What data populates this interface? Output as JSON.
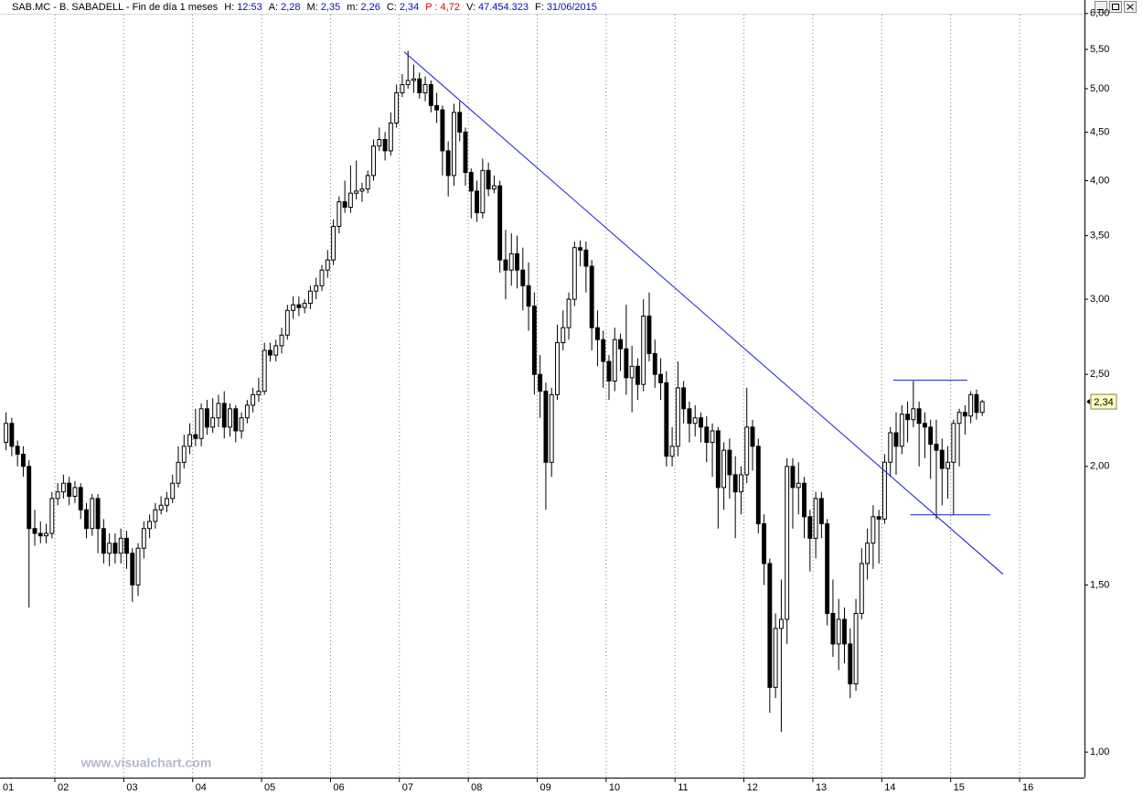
{
  "chart_data": {
    "type": "candlestick",
    "title": "SAB.MC - B. SABADELL - Fin de día 1 meses",
    "quote": [
      {
        "label": "H:",
        "value": "12:53"
      },
      {
        "label": "A:",
        "value": "2,28"
      },
      {
        "label": "M:",
        "value": "2,35"
      },
      {
        "label": "m:",
        "value": "2,26"
      },
      {
        "label": "C:",
        "value": "2,34"
      },
      {
        "label": "P :",
        "value": "4,72",
        "color": "#e00000"
      },
      {
        "label": "V:",
        "value": "47.454.323"
      },
      {
        "label": "F:",
        "value": "31/06/2015"
      }
    ],
    "watermark": "www.visualchart.com",
    "log": true,
    "xgrid": true,
    "up_color": "#ffffff",
    "down_color": "#000000",
    "xlim": [
      13.95,
      202.8
    ],
    "xticks": [
      {
        "value": 11.5,
        "label": "01"
      },
      {
        "value": 23.5,
        "label": "02"
      },
      {
        "value": 35.5,
        "label": "03"
      },
      {
        "value": 47.5,
        "label": "04"
      },
      {
        "value": 59.5,
        "label": "05"
      },
      {
        "value": 71.5,
        "label": "06"
      },
      {
        "value": 83.5,
        "label": "07"
      },
      {
        "value": 95.5,
        "label": "08"
      },
      {
        "value": 107.5,
        "label": "09"
      },
      {
        "value": 119.5,
        "label": "10"
      },
      {
        "value": 131.5,
        "label": "11"
      },
      {
        "value": 143.5,
        "label": "12"
      },
      {
        "value": 155.5,
        "label": "13"
      },
      {
        "value": 167.5,
        "label": "14"
      },
      {
        "value": 179.5,
        "label": "15"
      },
      {
        "value": 191.5,
        "label": "16"
      }
    ],
    "ylim": [
      0.94,
      6.2
    ],
    "yticks": [
      {
        "value": 1,
        "label": "1,00"
      },
      {
        "value": 1.5,
        "label": "1,50"
      },
      {
        "value": 2,
        "label": "2,00"
      },
      {
        "value": 2.5,
        "label": "2,50"
      },
      {
        "value": 3,
        "label": "3,00"
      },
      {
        "value": 3.5,
        "label": "3,50"
      },
      {
        "value": 4,
        "label": "4,00"
      },
      {
        "value": 4.5,
        "label": "4,50"
      },
      {
        "value": 5,
        "label": "5,00"
      },
      {
        "value": 5.5,
        "label": "5,50"
      },
      {
        "value": 6,
        "label": "6,00"
      }
    ],
    "x": [
      15,
      16,
      17,
      18,
      19,
      20,
      21,
      22,
      23,
      24,
      25,
      26,
      27,
      28,
      29,
      30,
      31,
      32,
      33,
      34,
      35,
      36,
      37,
      38,
      39,
      40,
      41,
      42,
      43,
      44,
      45,
      46,
      47,
      48,
      49,
      50,
      51,
      52,
      53,
      54,
      55,
      56,
      57,
      58,
      59,
      60,
      61,
      62,
      63,
      64,
      65,
      66,
      67,
      68,
      69,
      70,
      71,
      72,
      73,
      74,
      75,
      76,
      77,
      78,
      79,
      80,
      81,
      82,
      83,
      84,
      85,
      86,
      87,
      88,
      89,
      90,
      91,
      92,
      93,
      94,
      95,
      96,
      97,
      98,
      99,
      100,
      101,
      102,
      103,
      104,
      105,
      106,
      107,
      108,
      109,
      110,
      111,
      112,
      113,
      114,
      115,
      116,
      117,
      118,
      119,
      120,
      121,
      122,
      123,
      124,
      125,
      126,
      127,
      128,
      129,
      130,
      131,
      132,
      133,
      134,
      135,
      136,
      137,
      138,
      139,
      140,
      141,
      142,
      143,
      144,
      145,
      146,
      147,
      148,
      149,
      150,
      151,
      152,
      153,
      154,
      155,
      156,
      157,
      158,
      159,
      160,
      161,
      162,
      163,
      164,
      165,
      166,
      167,
      168,
      169,
      170,
      171,
      172,
      173,
      174,
      175,
      176,
      177,
      178,
      179,
      180,
      181,
      182,
      183,
      184,
      185
    ],
    "open": [
      2.12,
      2.22,
      2.1,
      2.06,
      2.0,
      1.72,
      1.7,
      1.69,
      1.7,
      1.85,
      1.88,
      1.92,
      1.86,
      1.9,
      1.8,
      1.72,
      1.85,
      1.72,
      1.62,
      1.66,
      1.62,
      1.68,
      1.62,
      1.5,
      1.64,
      1.72,
      1.75,
      1.8,
      1.82,
      1.85,
      1.92,
      2.02,
      2.1,
      2.16,
      2.14,
      2.3,
      2.2,
      2.25,
      2.33,
      2.2,
      2.3,
      2.18,
      2.25,
      2.32,
      2.38,
      2.4,
      2.65,
      2.62,
      2.68,
      2.75,
      2.92,
      2.96,
      2.94,
      2.97,
      3.06,
      3.1,
      3.22,
      3.3,
      3.58,
      3.8,
      3.75,
      3.88,
      3.9,
      3.92,
      4.05,
      4.35,
      4.42,
      4.3,
      4.6,
      4.95,
      5.05,
      5.1,
      5.12,
      4.95,
      5.05,
      4.8,
      4.75,
      4.3,
      4.05,
      4.72,
      4.5,
      4.08,
      3.9,
      3.7,
      4.1,
      3.92,
      3.95,
      3.3,
      3.22,
      3.35,
      3.22,
      3.1,
      2.95,
      2.5,
      2.4,
      2.02,
      2.38,
      2.7,
      2.8,
      3.0,
      3.4,
      3.38,
      3.25,
      2.8,
      2.72,
      2.58,
      2.46,
      2.72,
      2.66,
      2.48,
      2.55,
      2.44,
      2.88,
      2.63,
      2.5,
      2.45,
      2.05,
      2.1,
      2.42,
      2.3,
      2.22,
      2.25,
      2.2,
      2.12,
      2.18,
      1.9,
      2.08,
      1.96,
      1.88,
      1.96,
      2.2,
      2.1,
      1.74,
      1.58,
      1.17,
      1.35,
      1.38,
      2.0,
      1.9,
      1.92,
      1.77,
      1.68,
      1.85,
      1.74,
      1.4,
      1.3,
      1.38,
      1.3,
      1.18,
      1.4,
      1.58,
      1.66,
      1.77,
      1.76,
      2.02,
      2.17,
      2.1,
      2.27,
      2.24,
      2.3,
      2.22,
      2.2,
      2.11,
      2.08,
      1.99,
      2.02,
      2.22,
      2.28,
      2.26,
      2.38,
      2.28
    ],
    "high": [
      2.28,
      2.25,
      2.13,
      2.1,
      2.03,
      1.8,
      1.75,
      1.74,
      1.88,
      1.92,
      1.96,
      1.95,
      1.93,
      1.92,
      1.83,
      1.87,
      1.87,
      1.76,
      1.7,
      1.7,
      1.72,
      1.71,
      1.64,
      1.66,
      1.75,
      1.78,
      1.83,
      1.86,
      1.88,
      1.96,
      2.1,
      2.16,
      2.22,
      2.3,
      2.33,
      2.35,
      2.36,
      2.38,
      2.4,
      2.33,
      2.32,
      2.28,
      2.35,
      2.42,
      2.48,
      2.7,
      2.7,
      2.72,
      2.8,
      2.96,
      3.02,
      3.02,
      3.0,
      3.1,
      3.16,
      3.26,
      3.38,
      3.64,
      3.85,
      4.0,
      4.15,
      4.2,
      3.98,
      4.1,
      4.42,
      4.55,
      4.5,
      4.72,
      5.05,
      5.18,
      5.48,
      5.3,
      5.2,
      5.15,
      5.1,
      4.95,
      4.8,
      4.4,
      4.82,
      4.85,
      4.55,
      4.12,
      4.0,
      4.22,
      4.18,
      4.05,
      4.0,
      3.55,
      3.52,
      3.5,
      3.4,
      3.28,
      3.05,
      2.62,
      2.45,
      2.42,
      2.82,
      2.92,
      3.05,
      3.45,
      3.46,
      3.45,
      3.3,
      2.92,
      2.78,
      2.62,
      2.8,
      2.76,
      2.96,
      2.68,
      2.6,
      3.0,
      3.05,
      2.72,
      2.6,
      2.52,
      2.2,
      2.58,
      2.46,
      2.34,
      2.32,
      2.28,
      2.26,
      2.22,
      2.2,
      2.12,
      2.14,
      2.05,
      2.0,
      2.42,
      2.24,
      2.14,
      1.78,
      1.6,
      1.4,
      1.52,
      2.04,
      2.04,
      2.02,
      1.95,
      1.8,
      1.88,
      1.88,
      1.76,
      1.52,
      1.45,
      1.42,
      1.35,
      1.45,
      1.64,
      1.72,
      1.82,
      1.8,
      2.06,
      2.2,
      2.28,
      2.32,
      2.34,
      2.46,
      2.34,
      2.28,
      2.24,
      2.24,
      2.14,
      2.1,
      2.24,
      2.3,
      2.32,
      2.4,
      2.41,
      2.35
    ],
    "low": [
      2.08,
      2.05,
      2.0,
      1.95,
      1.42,
      1.65,
      1.66,
      1.66,
      1.68,
      1.82,
      1.85,
      1.82,
      1.83,
      1.76,
      1.68,
      1.69,
      1.62,
      1.58,
      1.57,
      1.58,
      1.58,
      1.56,
      1.44,
      1.46,
      1.6,
      1.68,
      1.72,
      1.78,
      1.79,
      1.83,
      1.9,
      1.99,
      2.06,
      2.1,
      2.1,
      2.16,
      2.17,
      2.2,
      2.14,
      2.15,
      2.12,
      2.14,
      2.22,
      2.28,
      2.34,
      2.38,
      2.58,
      2.58,
      2.63,
      2.72,
      2.86,
      2.88,
      2.9,
      2.93,
      3.0,
      3.06,
      3.16,
      3.26,
      3.52,
      3.7,
      3.7,
      3.82,
      3.8,
      3.88,
      4.0,
      4.3,
      4.2,
      4.25,
      4.55,
      4.9,
      5.0,
      4.95,
      4.88,
      4.85,
      4.72,
      4.6,
      4.05,
      3.85,
      3.95,
      4.4,
      3.95,
      3.65,
      3.62,
      3.65,
      3.85,
      3.88,
      3.2,
      3.0,
      3.1,
      3.08,
      2.92,
      2.78,
      2.38,
      2.25,
      1.8,
      1.95,
      2.35,
      2.65,
      2.72,
      2.95,
      3.25,
      3.05,
      2.65,
      2.55,
      2.42,
      2.35,
      2.4,
      2.52,
      2.38,
      2.28,
      2.35,
      2.4,
      2.58,
      2.42,
      2.35,
      2.0,
      2.0,
      2.05,
      2.22,
      2.12,
      2.15,
      2.12,
      2.02,
      1.95,
      1.72,
      1.8,
      1.85,
      1.68,
      1.78,
      1.92,
      1.98,
      1.7,
      1.5,
      1.1,
      1.14,
      1.05,
      1.3,
      1.72,
      1.78,
      1.68,
      1.55,
      1.6,
      1.68,
      1.36,
      1.26,
      1.22,
      1.24,
      1.14,
      1.16,
      1.38,
      1.52,
      1.56,
      1.58,
      1.74,
      1.95,
      1.96,
      2.06,
      2.12,
      2.2,
      2.0,
      2.04,
      1.94,
      1.76,
      1.82,
      1.85,
      1.78,
      2.0,
      2.16,
      2.22,
      2.24,
      2.26
    ],
    "close": [
      2.22,
      2.1,
      2.06,
      2.0,
      1.72,
      1.7,
      1.69,
      1.7,
      1.85,
      1.88,
      1.92,
      1.86,
      1.9,
      1.8,
      1.72,
      1.85,
      1.72,
      1.62,
      1.66,
      1.62,
      1.68,
      1.62,
      1.5,
      1.64,
      1.72,
      1.75,
      1.8,
      1.82,
      1.85,
      1.92,
      2.02,
      2.1,
      2.16,
      2.14,
      2.3,
      2.2,
      2.25,
      2.33,
      2.2,
      2.3,
      2.18,
      2.25,
      2.32,
      2.38,
      2.4,
      2.65,
      2.62,
      2.68,
      2.75,
      2.92,
      2.96,
      2.94,
      2.97,
      3.06,
      3.1,
      3.22,
      3.3,
      3.58,
      3.8,
      3.75,
      3.88,
      3.9,
      3.92,
      4.05,
      4.35,
      4.42,
      4.3,
      4.6,
      4.95,
      5.05,
      5.1,
      5.12,
      4.95,
      5.05,
      4.8,
      4.75,
      4.3,
      4.05,
      4.72,
      4.5,
      4.08,
      3.9,
      3.7,
      4.1,
      3.92,
      3.95,
      3.3,
      3.22,
      3.35,
      3.22,
      3.1,
      2.95,
      2.5,
      2.4,
      2.02,
      2.38,
      2.7,
      2.8,
      3.0,
      3.4,
      3.38,
      3.25,
      2.8,
      2.72,
      2.58,
      2.46,
      2.72,
      2.66,
      2.48,
      2.55,
      2.44,
      2.88,
      2.63,
      2.5,
      2.45,
      2.05,
      2.1,
      2.42,
      2.3,
      2.22,
      2.25,
      2.2,
      2.12,
      2.18,
      1.9,
      2.08,
      1.96,
      1.88,
      1.96,
      2.2,
      2.1,
      1.74,
      1.58,
      1.17,
      1.35,
      1.38,
      2.0,
      1.9,
      1.92,
      1.77,
      1.68,
      1.85,
      1.74,
      1.4,
      1.3,
      1.38,
      1.3,
      1.18,
      1.4,
      1.58,
      1.66,
      1.77,
      1.76,
      2.02,
      2.17,
      2.1,
      2.27,
      2.24,
      2.3,
      2.22,
      2.2,
      2.11,
      2.08,
      1.99,
      2.02,
      2.22,
      2.28,
      2.26,
      2.38,
      2.28,
      2.34
    ],
    "drawings": [
      {
        "x": [
          84.3,
          188.6
        ],
        "y": [
          5.47,
          1.54
        ],
        "color": "#1a1ad0"
      },
      {
        "x": [
          169.5,
          182.4
        ],
        "y": [
          2.465,
          2.465
        ],
        "color": "#1a1ad0"
      },
      {
        "x": [
          172.5,
          186.4
        ],
        "y": [
          1.778,
          1.778
        ],
        "color": "#1a1ad0"
      }
    ]
  }
}
